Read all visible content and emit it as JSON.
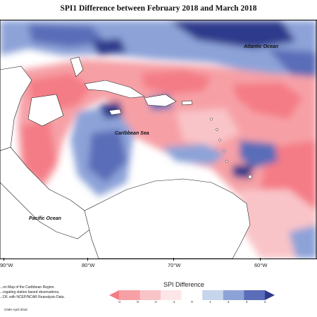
{
  "title": "SPI1 Difference between February 2018 and March 2018",
  "map_labels": {
    "atlantic": "Atlantic Ocean",
    "caribbean": "Caribbean Sea",
    "pacific": "Pacific Ocean"
  },
  "longitude_labels": [
    "90°W",
    "80°W",
    "70°W",
    "60°W"
  ],
  "legend": {
    "title": "SPI Difference",
    "ticks": [
      "-4",
      "-3",
      "-2",
      "-1",
      "0",
      "1",
      "2",
      "3",
      "4"
    ],
    "colors": [
      "#f47c86",
      "#f6a0a6",
      "#f9c4c8",
      "#fde6e8",
      "#ffffff",
      "#c6d4ec",
      "#8da3d8",
      "#5a6db8",
      "#2e3a8c"
    ]
  },
  "notes": [
    "...on Map of the Caribbean Region.",
    "...regating station based observations,",
    "...DF, with NCEP/NCAR Reanalysis Data."
  ],
  "credit": "CIMH April 2018"
}
